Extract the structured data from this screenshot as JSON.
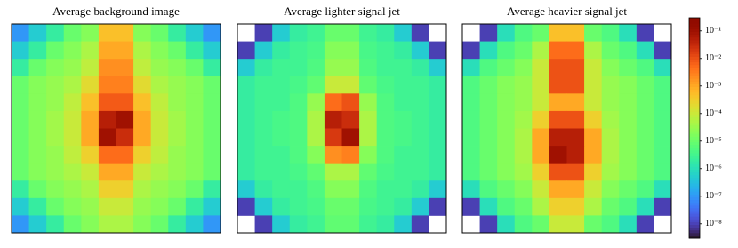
{
  "chart_data": {
    "type": "heatmap",
    "colormap": "turbo",
    "log_scale": true,
    "zlim": [
      3e-09,
      0.3
    ],
    "zticks": [
      {
        "value": 1e-08,
        "label": "10⁻⁸"
      },
      {
        "value": 1e-07,
        "label": "10⁻⁷"
      },
      {
        "value": 1e-06,
        "label": "10⁻⁶"
      },
      {
        "value": 1e-05,
        "label": "10⁻⁵"
      },
      {
        "value": 0.0001,
        "label": "10⁻⁴"
      },
      {
        "value": 0.001,
        "label": "10⁻³"
      },
      {
        "value": 0.01,
        "label": "10⁻²"
      },
      {
        "value": 0.1,
        "label": "10⁻¹"
      }
    ],
    "panels": [
      {
        "title": "Average background image",
        "values": [
          [
            1e-07,
            5e-07,
            2e-06,
            1e-05,
            2e-05,
            0.0005,
            0.0005,
            2e-05,
            1e-05,
            2e-06,
            5e-07,
            1e-07
          ],
          [
            5e-07,
            2e-06,
            1e-05,
            2e-05,
            5e-05,
            0.001,
            0.001,
            5e-05,
            2e-05,
            1e-05,
            2e-06,
            5e-07
          ],
          [
            2e-06,
            1e-05,
            2e-05,
            3e-05,
            8e-05,
            0.002,
            0.002,
            8e-05,
            3e-05,
            2e-05,
            1e-05,
            2e-06
          ],
          [
            1e-05,
            2e-05,
            3e-05,
            5e-05,
            0.0002,
            0.003,
            0.003,
            0.0002,
            5e-05,
            3e-05,
            2e-05,
            1e-05
          ],
          [
            1e-05,
            2e-05,
            3e-05,
            8e-05,
            0.0005,
            0.008,
            0.008,
            0.0005,
            8e-05,
            3e-05,
            2e-05,
            1e-05
          ],
          [
            1e-05,
            2e-05,
            4e-05,
            0.0001,
            0.001,
            0.05,
            0.1,
            0.001,
            0.0001,
            4e-05,
            2e-05,
            1e-05
          ],
          [
            1e-05,
            2e-05,
            4e-05,
            0.0001,
            0.001,
            0.1,
            0.03,
            0.001,
            0.0001,
            4e-05,
            2e-05,
            1e-05
          ],
          [
            1e-05,
            2e-05,
            3e-05,
            8e-05,
            0.0003,
            0.005,
            0.005,
            0.0003,
            8e-05,
            3e-05,
            2e-05,
            1e-05
          ],
          [
            1e-05,
            2e-05,
            3e-05,
            5e-05,
            0.0001,
            0.001,
            0.001,
            0.0001,
            5e-05,
            3e-05,
            2e-05,
            1e-05
          ],
          [
            2e-06,
            1e-05,
            2e-05,
            3e-05,
            5e-05,
            0.0003,
            0.0003,
            5e-05,
            3e-05,
            2e-05,
            1e-05,
            2e-06
          ],
          [
            5e-07,
            2e-06,
            1e-05,
            2e-05,
            3e-05,
            0.0001,
            0.0001,
            3e-05,
            2e-05,
            1e-05,
            2e-06,
            5e-07
          ],
          [
            1e-07,
            5e-07,
            2e-06,
            1e-05,
            2e-05,
            5e-05,
            5e-05,
            2e-05,
            1e-05,
            2e-06,
            5e-07,
            1e-07
          ]
        ]
      },
      {
        "title": "Average lighter signal jet",
        "values": [
          [
            null,
            1e-08,
            5e-07,
            2e-06,
            3e-06,
            1e-05,
            1e-05,
            3e-06,
            2e-06,
            5e-07,
            1e-08,
            null
          ],
          [
            1e-08,
            5e-07,
            2e-06,
            3e-06,
            4e-06,
            2e-05,
            2e-05,
            4e-06,
            3e-06,
            2e-06,
            5e-07,
            1e-08
          ],
          [
            5e-07,
            2e-06,
            3e-06,
            3e-06,
            5e-06,
            3e-05,
            3e-05,
            5e-06,
            3e-06,
            3e-06,
            2e-06,
            5e-07
          ],
          [
            2e-06,
            3e-06,
            3e-06,
            4e-06,
            8e-06,
            0.0001,
            0.0001,
            8e-06,
            4e-06,
            3e-06,
            3e-06,
            2e-06
          ],
          [
            2e-06,
            3e-06,
            3e-06,
            5e-06,
            3e-05,
            0.005,
            0.01,
            3e-05,
            5e-06,
            3e-06,
            3e-06,
            2e-06
          ],
          [
            2e-06,
            3e-06,
            4e-06,
            5e-06,
            5e-05,
            0.05,
            0.03,
            5e-05,
            5e-06,
            4e-06,
            3e-06,
            2e-06
          ],
          [
            2e-06,
            3e-06,
            4e-06,
            5e-06,
            5e-05,
            0.02,
            0.1,
            5e-05,
            5e-06,
            4e-06,
            3e-06,
            2e-06
          ],
          [
            2e-06,
            3e-06,
            3e-06,
            5e-06,
            2e-05,
            0.002,
            0.003,
            2e-05,
            5e-06,
            3e-06,
            3e-06,
            2e-06
          ],
          [
            2e-06,
            3e-06,
            3e-06,
            4e-06,
            8e-06,
            5e-05,
            5e-05,
            8e-06,
            4e-06,
            3e-06,
            3e-06,
            2e-06
          ],
          [
            5e-07,
            2e-06,
            3e-06,
            3e-06,
            5e-06,
            2e-05,
            2e-05,
            5e-06,
            3e-06,
            3e-06,
            2e-06,
            5e-07
          ],
          [
            1e-08,
            5e-07,
            2e-06,
            3e-06,
            4e-06,
            1e-05,
            1e-05,
            4e-06,
            3e-06,
            2e-06,
            5e-07,
            1e-08
          ],
          [
            null,
            1e-08,
            5e-07,
            2e-06,
            3e-06,
            8e-06,
            8e-06,
            3e-06,
            2e-06,
            5e-07,
            1e-08,
            null
          ]
        ]
      },
      {
        "title": "Average heavier signal jet",
        "values": [
          [
            null,
            1e-08,
            1e-06,
            5e-06,
            1e-05,
            0.0005,
            0.0005,
            1e-05,
            5e-06,
            1e-06,
            1e-08,
            null
          ],
          [
            1e-08,
            1e-06,
            5e-06,
            1e-05,
            5e-05,
            0.005,
            0.005,
            5e-05,
            1e-05,
            5e-06,
            1e-06,
            1e-08
          ],
          [
            1e-06,
            5e-06,
            1e-05,
            2e-05,
            0.0001,
            0.01,
            0.01,
            0.0001,
            2e-05,
            1e-05,
            5e-06,
            1e-06
          ],
          [
            5e-06,
            1e-05,
            2e-05,
            3e-05,
            0.0001,
            0.01,
            0.01,
            0.0001,
            3e-05,
            2e-05,
            1e-05,
            5e-06
          ],
          [
            5e-06,
            1e-05,
            2e-05,
            3e-05,
            0.0001,
            0.001,
            0.001,
            0.0001,
            3e-05,
            2e-05,
            1e-05,
            5e-06
          ],
          [
            5e-06,
            1e-05,
            2e-05,
            4e-05,
            0.0003,
            0.01,
            0.01,
            0.0003,
            4e-05,
            2e-05,
            1e-05,
            5e-06
          ],
          [
            5e-06,
            1e-05,
            2e-05,
            5e-05,
            0.001,
            0.05,
            0.05,
            0.001,
            5e-05,
            2e-05,
            1e-05,
            5e-06
          ],
          [
            5e-06,
            1e-05,
            2e-05,
            5e-05,
            0.001,
            0.1,
            0.05,
            0.001,
            5e-05,
            2e-05,
            1e-05,
            5e-06
          ],
          [
            5e-06,
            1e-05,
            2e-05,
            4e-05,
            0.0003,
            0.01,
            0.01,
            0.0003,
            4e-05,
            2e-05,
            1e-05,
            5e-06
          ],
          [
            1e-06,
            5e-06,
            1e-05,
            2e-05,
            0.0001,
            0.001,
            0.001,
            0.0001,
            2e-05,
            1e-05,
            5e-06,
            1e-06
          ],
          [
            1e-08,
            1e-06,
            5e-06,
            1e-05,
            5e-05,
            0.0003,
            0.0003,
            5e-05,
            1e-05,
            5e-06,
            1e-06,
            1e-08
          ],
          [
            null,
            1e-08,
            1e-06,
            5e-06,
            1e-05,
            0.0001,
            0.0001,
            1e-05,
            5e-06,
            1e-06,
            1e-08,
            null
          ]
        ]
      }
    ]
  }
}
